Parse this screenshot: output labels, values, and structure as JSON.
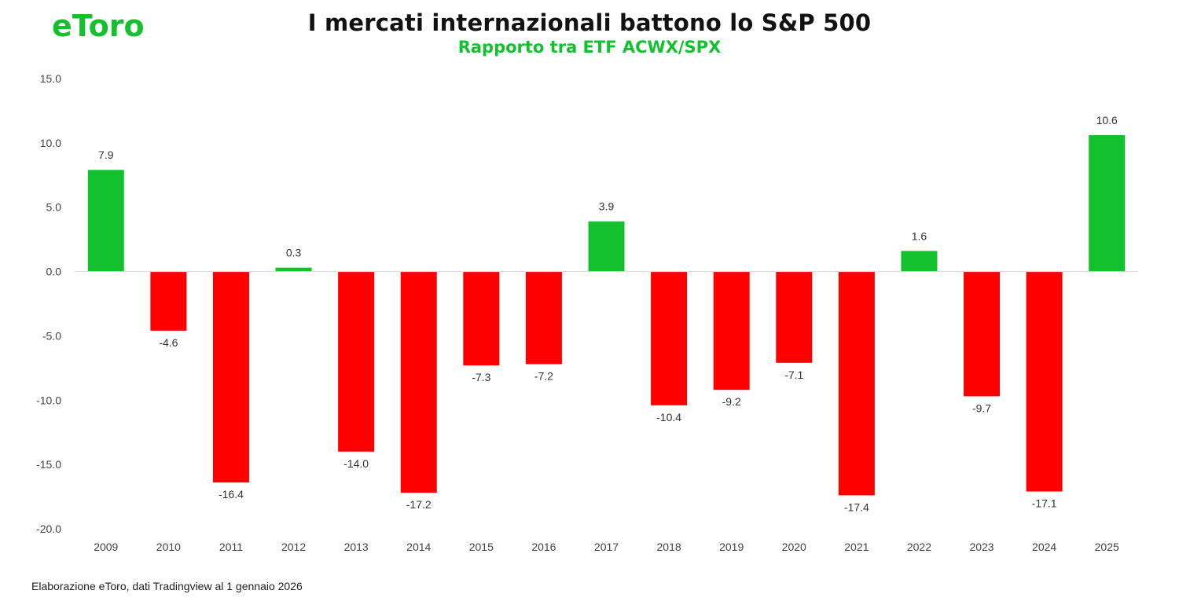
{
  "brand": {
    "logo_text": "eToro",
    "logo_color": "#13c12f"
  },
  "header": {
    "title": "I mercati internazionali battono lo S&P 500",
    "subtitle": "Rapporto tra ETF ACWX/SPX"
  },
  "footer": {
    "source": "Elaborazione eToro, dati Tradingview al 1 gennaio 2026"
  },
  "chart_data": {
    "type": "bar",
    "title": "I mercati internazionali battono lo S&P 500",
    "subtitle": "Rapporto tra ETF ACWX/SPX",
    "xlabel": "",
    "ylabel": "",
    "categories": [
      "2009",
      "2010",
      "2011",
      "2012",
      "2013",
      "2014",
      "2015",
      "2016",
      "2017",
      "2018",
      "2019",
      "2020",
      "2021",
      "2022",
      "2023",
      "2024",
      "2025"
    ],
    "values": [
      7.9,
      -4.6,
      -16.4,
      0.3,
      -14.0,
      -17.2,
      -7.3,
      -7.2,
      3.9,
      -10.4,
      -9.2,
      -7.1,
      -17.4,
      1.6,
      -9.7,
      -17.1,
      10.6
    ],
    "data_labels": [
      "7.9",
      "-4.6",
      "-16.4",
      "0.3",
      "-14.0",
      "-17.2",
      "-7.3",
      "-7.2",
      "3.9",
      "-10.4",
      "-9.2",
      "-7.1",
      "-17.4",
      "1.6",
      "-9.7",
      "-17.1",
      "10.6"
    ],
    "ylim": [
      -20,
      15
    ],
    "yticks": [
      15,
      10,
      5,
      0,
      -5,
      -10,
      -15,
      -20
    ],
    "ytick_labels": [
      "15.0",
      "10.0",
      "5.0",
      "0.0",
      "-5.0",
      "-10.0",
      "-15.0",
      "-20.0"
    ],
    "grid": false,
    "legend": "none",
    "colors": {
      "positive": "#13c12f",
      "negative": "#ff0000",
      "zero_line": "#d9d9d9",
      "tick_text": "#444444",
      "label_text": "#333333"
    }
  }
}
